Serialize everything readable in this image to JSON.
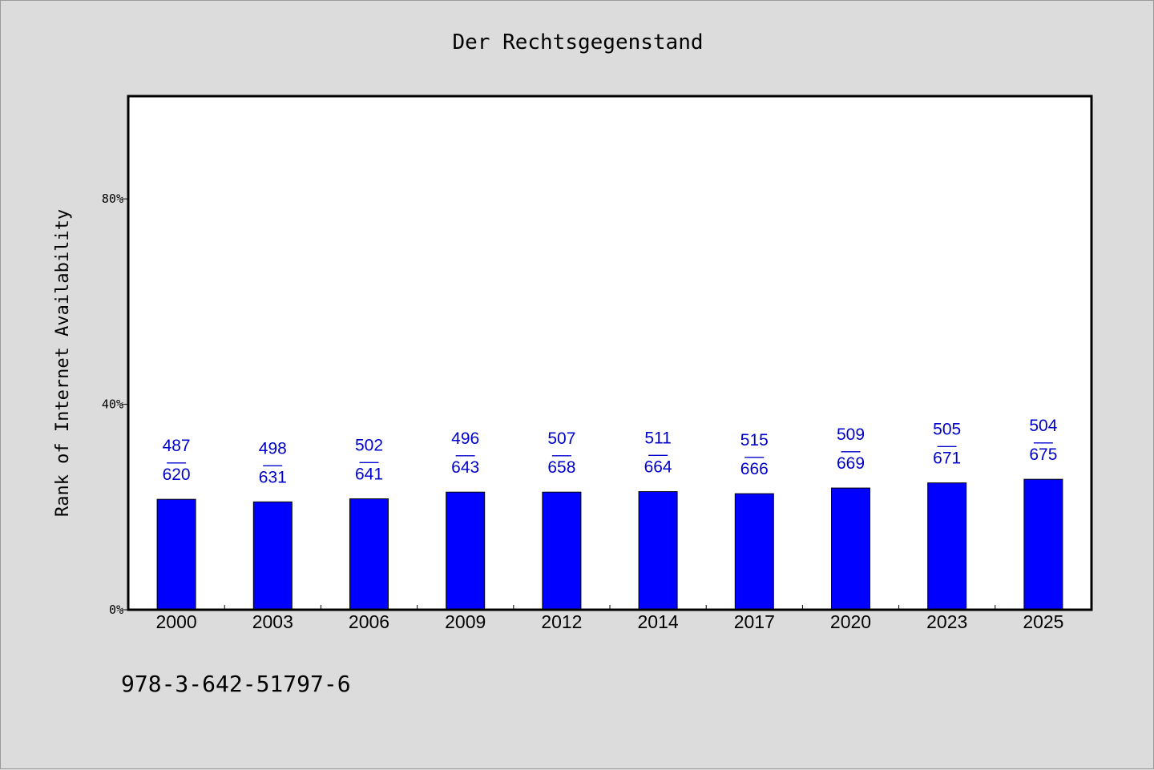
{
  "chart_data": {
    "type": "bar",
    "title": "Der Rechtsgegenstand",
    "xlabel": "",
    "ylabel": "Rank of Internet Availability",
    "categories": [
      "2000",
      "2003",
      "2006",
      "2009",
      "2012",
      "2014",
      "2017",
      "2020",
      "2023",
      "2025"
    ],
    "values": [
      21.5,
      21.0,
      21.6,
      22.9,
      22.9,
      23.0,
      22.6,
      23.7,
      24.7,
      25.4
    ],
    "value_unit": "%",
    "data_labels": [
      {
        "top": "487",
        "sep": "—",
        "bottom": "620"
      },
      {
        "top": "498",
        "sep": "—",
        "bottom": "631"
      },
      {
        "top": "502",
        "sep": "—",
        "bottom": "641"
      },
      {
        "top": "496",
        "sep": "—",
        "bottom": "643"
      },
      {
        "top": "507",
        "sep": "—",
        "bottom": "658"
      },
      {
        "top": "511",
        "sep": "—",
        "bottom": "664"
      },
      {
        "top": "515",
        "sep": "—",
        "bottom": "666"
      },
      {
        "top": "509",
        "sep": "—",
        "bottom": "669"
      },
      {
        "top": "505",
        "sep": "—",
        "bottom": "671"
      },
      {
        "top": "504",
        "sep": "—",
        "bottom": "675"
      }
    ],
    "ylim": [
      0,
      100
    ],
    "yticks": [
      0,
      40,
      80
    ],
    "ytick_labels": [
      "0%",
      "40%",
      "80%"
    ],
    "grid": false,
    "legend": "none",
    "colors": {
      "bar": "#0000ff",
      "bar_edge": "#000000",
      "data_label": "#0000cc",
      "background": "#dcdcdc",
      "plot_background": "#ffffff"
    }
  },
  "footer": {
    "isbn": "978-3-642-51797-6"
  }
}
